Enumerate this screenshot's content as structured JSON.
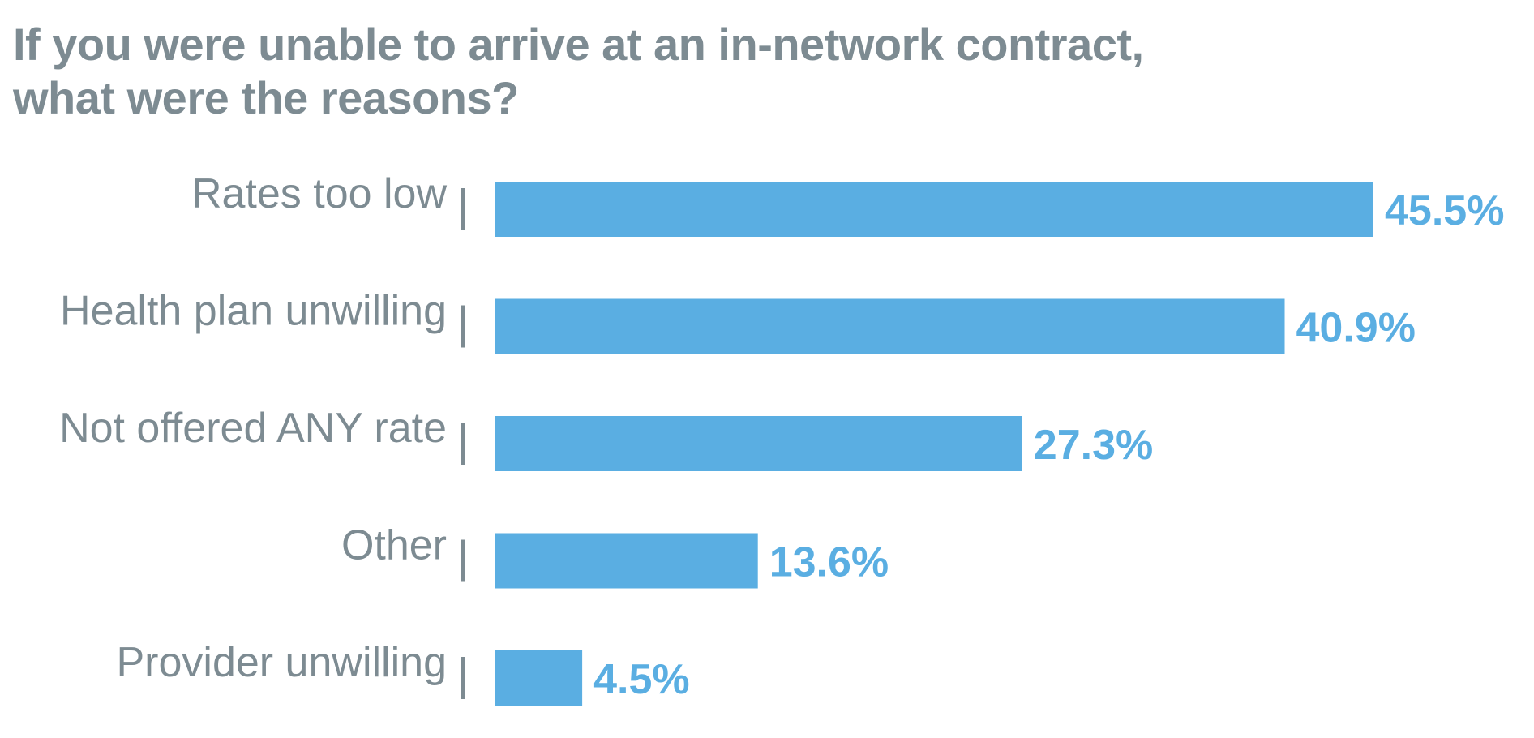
{
  "chart_data": {
    "type": "bar",
    "orientation": "horizontal",
    "title": "If you were unable to arrive at an in-network contract, what were the reasons?",
    "categories": [
      "Rates too low",
      "Health plan unwilling",
      "Not offered ANY rate",
      "Other",
      "Provider unwilling"
    ],
    "values": [
      45.5,
      40.9,
      27.3,
      13.6,
      4.5
    ],
    "value_labels": [
      "45.5%",
      "40.9%",
      "27.3%",
      "13.6%",
      "4.5%"
    ],
    "xlabel": "",
    "ylabel": "",
    "xlim": [
      0,
      45.5
    ],
    "grid": false,
    "legend": "none",
    "colors": {
      "bar": "#5aaee2",
      "value_text": "#5aaee2",
      "label_text": "#7d8b92",
      "tick": "#7d8b92",
      "title_text": "#7d8b92"
    }
  }
}
